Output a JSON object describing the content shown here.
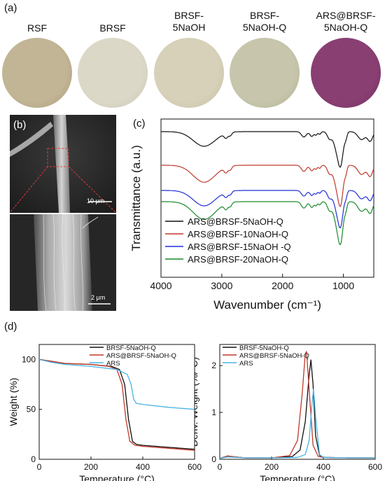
{
  "panel_a": {
    "label": "(a)",
    "samples": [
      {
        "lines": [
          "RSF"
        ],
        "color": "#c2b596",
        "edge": "#a89a78"
      },
      {
        "lines": [
          "BRSF"
        ],
        "color": "#dcd8c8",
        "edge": "#c9c4b2"
      },
      {
        "lines": [
          "BRSF-",
          "5NaOH"
        ],
        "color": "#d6d1b8",
        "edge": "#c3bda2"
      },
      {
        "lines": [
          "BRSF-",
          "5NaOH-Q"
        ],
        "color": "#c7c5ab",
        "edge": "#b2af93"
      },
      {
        "lines": [
          "ARS@BRSF-",
          "5NaOH-Q"
        ],
        "color": "#8a3f73",
        "edge": "#6f2e5c"
      }
    ]
  },
  "panel_b": {
    "label": "(b)",
    "scalebar_top": "10 μm",
    "scalebar_bottom": "2 μm"
  },
  "panel_c": {
    "label": "(c)",
    "chart_data": {
      "type": "line",
      "xlabel": "Wavenumber (cm⁻¹)",
      "ylabel": "Transmittance (a.u.)",
      "xlim": [
        4000,
        500
      ],
      "xticks": [
        4000,
        3000,
        2000,
        1000
      ],
      "series": [
        {
          "name": "ARS@BRSF-5NaOH-Q",
          "color": "#111111"
        },
        {
          "name": "ARS@BRSF-10NaOH-Q",
          "color": "#c0392b"
        },
        {
          "name": "ARS@BRSF-15NaOH -Q",
          "color": "#1f2fd6"
        },
        {
          "name": "ARS@BRSF-20NaOH-Q",
          "color": "#1a8a2a"
        }
      ]
    }
  },
  "panel_d": {
    "label": "(d)",
    "tga": {
      "chart_data": {
        "type": "line",
        "xlabel": "Temperature (°C)",
        "ylabel": "Weight (%)",
        "xlim": [
          0,
          600
        ],
        "ylim": [
          0,
          115
        ],
        "xticks": [
          0,
          200,
          400,
          600
        ],
        "yticks": [
          0,
          50,
          100
        ],
        "series": [
          {
            "name": "BRSF-5NaOH-Q",
            "color": "#111111",
            "x": [
              0,
              50,
              100,
              200,
              280,
              310,
              330,
              345,
              360,
              375,
              400,
              500,
              600
            ],
            "y": [
              100,
              98,
              96,
              95,
              93,
              90,
              75,
              40,
              18,
              15,
              14,
              12,
              10
            ]
          },
          {
            "name": "ARS@BRSF-5NaOH-Q",
            "color": "#c0392b",
            "x": [
              0,
              50,
              100,
              200,
              270,
              300,
              320,
              335,
              350,
              370,
              400,
              500,
              600
            ],
            "y": [
              100,
              98,
              96,
              95,
              93,
              90,
              75,
              40,
              18,
              14,
              13,
              11,
              9
            ]
          },
          {
            "name": "ARS",
            "color": "#4ab3e6",
            "x": [
              0,
              50,
              100,
              200,
              300,
              340,
              355,
              365,
              375,
              400,
              500,
              600
            ],
            "y": [
              100,
              97,
              95,
              93,
              90,
              85,
              75,
              60,
              56,
              55,
              52,
              50
            ]
          }
        ]
      }
    },
    "dtg": {
      "chart_data": {
        "type": "line",
        "xlabel": "Temperature (°C)",
        "ylabel": "Deriv. Weight (%/°C)",
        "xlim": [
          0,
          600
        ],
        "ylim": [
          0,
          2.45
        ],
        "xticks": [
          0,
          200,
          400,
          600
        ],
        "yticks": [
          0,
          1,
          2
        ],
        "series": [
          {
            "name": "BRSF-5NaOH-Q",
            "color": "#111111",
            "x": [
              0,
              30,
              60,
              100,
              200,
              280,
              310,
              330,
              345,
              352,
              360,
              370,
              385,
              400,
              500,
              600
            ],
            "y": [
              0.02,
              0.07,
              0.05,
              0.03,
              0.03,
              0.06,
              0.2,
              0.8,
              1.8,
              2.12,
              1.6,
              0.5,
              0.08,
              0.04,
              0.03,
              0.03
            ]
          },
          {
            "name": "ARS@BRSF-5NaOH-Q",
            "color": "#c0392b",
            "x": [
              0,
              30,
              60,
              100,
              200,
              270,
              300,
              318,
              330,
              335,
              345,
              360,
              380,
              400,
              500,
              600
            ],
            "y": [
              0.02,
              0.07,
              0.05,
              0.03,
              0.03,
              0.08,
              0.4,
              1.4,
              2.25,
              2.3,
              1.5,
              0.3,
              0.06,
              0.04,
              0.03,
              0.03
            ]
          },
          {
            "name": "ARS",
            "color": "#4ab3e6",
            "x": [
              0,
              30,
              100,
              200,
              300,
              330,
              345,
              355,
              362,
              370,
              385,
              400,
              500,
              600
            ],
            "y": [
              0.02,
              0.05,
              0.03,
              0.03,
              0.04,
              0.1,
              0.4,
              1.1,
              1.5,
              0.9,
              0.1,
              0.04,
              0.03,
              0.03
            ]
          }
        ]
      }
    }
  }
}
